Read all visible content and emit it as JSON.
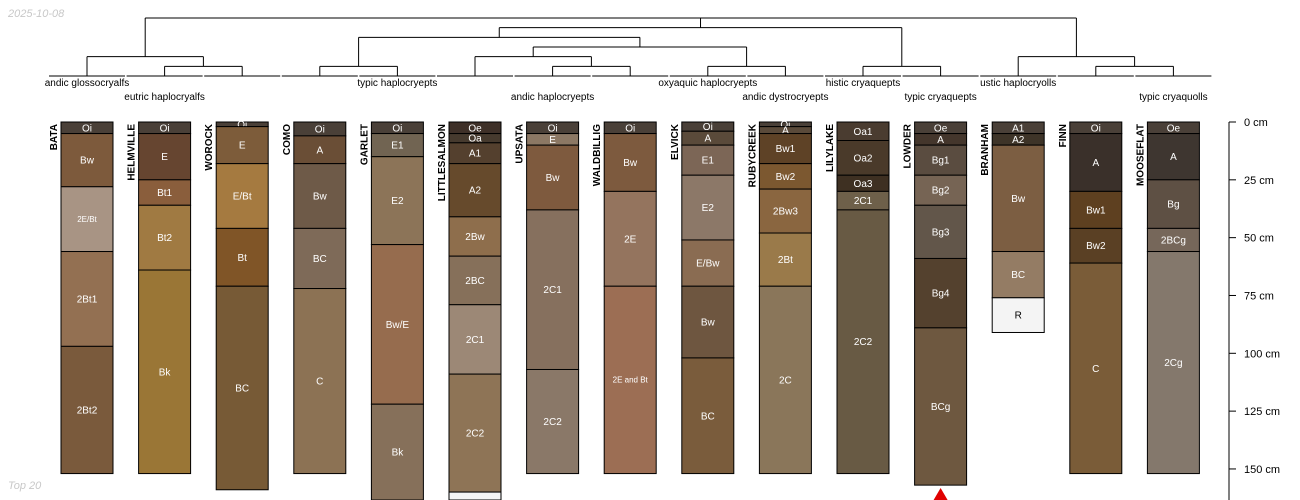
{
  "stamp": "2025-10-08",
  "footer": "Top 20",
  "chart_data": {
    "type": "soil-profile-sketch",
    "depth_axis": {
      "min": 0,
      "max": 160,
      "unit": "cm",
      "ticks": [
        "0 cm",
        "25 cm",
        "50 cm",
        "75 cm",
        "100 cm",
        "125 cm",
        "150 cm"
      ],
      "tick_values": [
        0,
        25,
        50,
        75,
        100,
        125,
        150
      ]
    },
    "profiles": [
      {
        "name": "BATA",
        "taxon": "andic glossocryalfs",
        "horizons": [
          {
            "name": "Oi",
            "top": 0,
            "bottom": 5,
            "color": "#4a4038"
          },
          {
            "name": "Bw",
            "top": 5,
            "bottom": 28,
            "color": "#7d5a3c"
          },
          {
            "name": "2E/Bt",
            "top": 28,
            "bottom": 56,
            "color": "#a89484"
          },
          {
            "name": "2Bt1",
            "top": 56,
            "bottom": 97,
            "color": "#937052"
          },
          {
            "name": "2Bt2",
            "top": 97,
            "bottom": 152,
            "color": "#7a5a3c"
          }
        ]
      },
      {
        "name": "HELMVILLE",
        "taxon": "eutric haplocryalfs",
        "horizons": [
          {
            "name": "Oi",
            "top": 0,
            "bottom": 5,
            "color": "#4a4038"
          },
          {
            "name": "E",
            "top": 5,
            "bottom": 25,
            "color": "#664530"
          },
          {
            "name": "Bt1",
            "top": 25,
            "bottom": 36,
            "color": "#8a5e3c"
          },
          {
            "name": "Bt2",
            "top": 36,
            "bottom": 64,
            "color": "#a07a42"
          },
          {
            "name": "Bk",
            "top": 64,
            "bottom": 152,
            "color": "#9a7636"
          }
        ]
      },
      {
        "name": "WOROCK",
        "taxon": "",
        "horizons": [
          {
            "name": "Oi",
            "top": 0,
            "bottom": 2,
            "color": "#4a4038"
          },
          {
            "name": "E",
            "top": 2,
            "bottom": 18,
            "color": "#7d5c3a"
          },
          {
            "name": "E/Bt",
            "top": 18,
            "bottom": 46,
            "color": "#a57a40"
          },
          {
            "name": "Bt",
            "top": 46,
            "bottom": 71,
            "color": "#805527"
          },
          {
            "name": "BC",
            "top": 71,
            "bottom": 159,
            "color": "#775a36"
          }
        ]
      },
      {
        "name": "COMO",
        "taxon": "",
        "horizons": [
          {
            "name": "Oi",
            "top": 0,
            "bottom": 6,
            "color": "#4a4038"
          },
          {
            "name": "A",
            "top": 6,
            "bottom": 18,
            "color": "#6a4e36"
          },
          {
            "name": "Bw",
            "top": 18,
            "bottom": 46,
            "color": "#6e5a48"
          },
          {
            "name": "BC",
            "top": 46,
            "bottom": 72,
            "color": "#7e6a58"
          },
          {
            "name": "C",
            "top": 72,
            "bottom": 152,
            "color": "#8c7254"
          }
        ]
      },
      {
        "name": "GARLET",
        "taxon": "typic haplocryepts",
        "horizons": [
          {
            "name": "Oi",
            "top": 0,
            "bottom": 5,
            "color": "#4a4038"
          },
          {
            "name": "E1",
            "top": 5,
            "bottom": 15,
            "color": "#716452"
          },
          {
            "name": "E2",
            "top": 15,
            "bottom": 53,
            "color": "#8c7458"
          },
          {
            "name": "Bw/E",
            "top": 53,
            "bottom": 122,
            "color": "#966c4e"
          },
          {
            "name": "Bk",
            "top": 122,
            "bottom": 165,
            "color": "#86705a"
          }
        ]
      },
      {
        "name": "LITTLESALMON",
        "taxon": "",
        "horizons": [
          {
            "name": "Oe",
            "top": 0,
            "bottom": 5,
            "color": "#3e3028"
          },
          {
            "name": "Oa",
            "top": 5,
            "bottom": 9,
            "color": "#463a2e"
          },
          {
            "name": "A1",
            "top": 9,
            "bottom": 18,
            "color": "#54402e"
          },
          {
            "name": "A2",
            "top": 18,
            "bottom": 41,
            "color": "#664a2c"
          },
          {
            "name": "2Bw",
            "top": 41,
            "bottom": 58,
            "color": "#8e6e4c"
          },
          {
            "name": "2BC",
            "top": 58,
            "bottom": 79,
            "color": "#86705a"
          },
          {
            "name": "2C1",
            "top": 79,
            "bottom": 109,
            "color": "#9c8876"
          },
          {
            "name": "2C2",
            "top": 109,
            "bottom": 160,
            "color": "#8e7456"
          },
          {
            "name": "",
            "top": 160,
            "bottom": 165,
            "color": "#f4f4f4"
          }
        ]
      },
      {
        "name": "UPSATA",
        "taxon": "andic haplocryepts",
        "horizons": [
          {
            "name": "Oi",
            "top": 0,
            "bottom": 5,
            "color": "#4a4038"
          },
          {
            "name": "E",
            "top": 5,
            "bottom": 10,
            "color": "#8c7864"
          },
          {
            "name": "Bw",
            "top": 10,
            "bottom": 38,
            "color": "#7e5a3e"
          },
          {
            "name": "2C1",
            "top": 38,
            "bottom": 107,
            "color": "#86705e"
          },
          {
            "name": "2C2",
            "top": 107,
            "bottom": 152,
            "color": "#8a7868"
          }
        ]
      },
      {
        "name": "WALDBILLIG",
        "taxon": "",
        "horizons": [
          {
            "name": "Oi",
            "top": 0,
            "bottom": 5,
            "color": "#4a4038"
          },
          {
            "name": "Bw",
            "top": 5,
            "bottom": 30,
            "color": "#7d5a3e"
          },
          {
            "name": "2E",
            "top": 30,
            "bottom": 71,
            "color": "#94745e"
          },
          {
            "name": "2E and Bt",
            "top": 71,
            "bottom": 152,
            "color": "#9c6e54"
          }
        ]
      },
      {
        "name": "ELVICK",
        "taxon": "oxyaquic haplocryepts",
        "horizons": [
          {
            "name": "Oi",
            "top": 0,
            "bottom": 4,
            "color": "#4a4038"
          },
          {
            "name": "A",
            "top": 4,
            "bottom": 10,
            "color": "#5a4a3a"
          },
          {
            "name": "E1",
            "top": 10,
            "bottom": 23,
            "color": "#7c6656"
          },
          {
            "name": "E2",
            "top": 23,
            "bottom": 51,
            "color": "#8c7868"
          },
          {
            "name": "E/Bw",
            "top": 51,
            "bottom": 71,
            "color": "#8a6c52"
          },
          {
            "name": "Bw",
            "top": 71,
            "bottom": 102,
            "color": "#6e5640"
          },
          {
            "name": "BC",
            "top": 102,
            "bottom": 152,
            "color": "#7a5c3c"
          }
        ]
      },
      {
        "name": "RUBYCREEK",
        "taxon": "andic dystrocryepts",
        "horizons": [
          {
            "name": "Oi",
            "top": 0,
            "bottom": 2,
            "color": "#4a4038"
          },
          {
            "name": "A",
            "top": 2,
            "bottom": 5,
            "color": "#5a4a3a"
          },
          {
            "name": "Bw1",
            "top": 5,
            "bottom": 18,
            "color": "#5e4226"
          },
          {
            "name": "Bw2",
            "top": 18,
            "bottom": 29,
            "color": "#7c5830"
          },
          {
            "name": "2Bw3",
            "top": 29,
            "bottom": 48,
            "color": "#8a6640"
          },
          {
            "name": "2Bt",
            "top": 48,
            "bottom": 71,
            "color": "#9a7a4a"
          },
          {
            "name": "2C",
            "top": 71,
            "bottom": 152,
            "color": "#8a765a"
          }
        ]
      },
      {
        "name": "LILYLAKE",
        "taxon": "histic cryaquepts",
        "horizons": [
          {
            "name": "Oa1",
            "top": 0,
            "bottom": 8,
            "color": "#4a3c30"
          },
          {
            "name": "Oa2",
            "top": 8,
            "bottom": 23,
            "color": "#4a3a2a"
          },
          {
            "name": "Oa3",
            "top": 23,
            "bottom": 30,
            "color": "#3e3022"
          },
          {
            "name": "2C1",
            "top": 30,
            "bottom": 38,
            "color": "#6e604a"
          },
          {
            "name": "2C2",
            "top": 38,
            "bottom": 152,
            "color": "#685a44"
          }
        ]
      },
      {
        "name": "LOWDER",
        "taxon": "typic cryaquepts",
        "horizons": [
          {
            "name": "Oe",
            "top": 0,
            "bottom": 5,
            "color": "#4a4038"
          },
          {
            "name": "A",
            "top": 5,
            "bottom": 10,
            "color": "#44362c"
          },
          {
            "name": "Bg1",
            "top": 10,
            "bottom": 23,
            "color": "#5a4c40"
          },
          {
            "name": "Bg2",
            "top": 23,
            "bottom": 36,
            "color": "#766454"
          },
          {
            "name": "Bg3",
            "top": 36,
            "bottom": 59,
            "color": "#62564a"
          },
          {
            "name": "Bg4",
            "top": 59,
            "bottom": 89,
            "color": "#54412e"
          },
          {
            "name": "BCg",
            "top": 89,
            "bottom": 157,
            "color": "#6e5840"
          }
        ]
      },
      {
        "name": "BRANHAM",
        "taxon": "ustic haplocryolls",
        "horizons": [
          {
            "name": "A1",
            "top": 0,
            "bottom": 5,
            "color": "#4a4038"
          },
          {
            "name": "A2",
            "top": 5,
            "bottom": 10,
            "color": "#3e3428"
          },
          {
            "name": "Bw",
            "top": 10,
            "bottom": 56,
            "color": "#7c5e42"
          },
          {
            "name": "BC",
            "top": 56,
            "bottom": 76,
            "color": "#947c64"
          },
          {
            "name": "R",
            "top": 76,
            "bottom": 91,
            "color": "#f4f4f4"
          }
        ]
      },
      {
        "name": "FINN",
        "taxon": "",
        "horizons": [
          {
            "name": "Oi",
            "top": 0,
            "bottom": 5,
            "color": "#4a4038"
          },
          {
            "name": "A",
            "top": 5,
            "bottom": 30,
            "color": "#3a302a"
          },
          {
            "name": "Bw1",
            "top": 30,
            "bottom": 46,
            "color": "#5e4020"
          },
          {
            "name": "Bw2",
            "top": 46,
            "bottom": 61,
            "color": "#5a4024"
          },
          {
            "name": "C",
            "top": 61,
            "bottom": 152,
            "color": "#7a5c38"
          }
        ]
      },
      {
        "name": "MOOSEFLAT",
        "taxon": "typic cryaquolls",
        "horizons": [
          {
            "name": "Oe",
            "top": 0,
            "bottom": 5,
            "color": "#4a4038"
          },
          {
            "name": "A",
            "top": 5,
            "bottom": 25,
            "color": "#3e3630"
          },
          {
            "name": "Bg",
            "top": 25,
            "bottom": 46,
            "color": "#5e5044"
          },
          {
            "name": "2BCg",
            "top": 46,
            "bottom": 56,
            "color": "#76675a"
          },
          {
            "name": "2Cg",
            "top": 56,
            "bottom": 152,
            "color": "#84786c"
          }
        ]
      }
    ],
    "tree": {
      "children": [
        {
          "children": [
            {
              "leaf": 0
            },
            {
              "children": [
                {
                  "leaf": 1
                },
                {
                  "leaf": 2
                }
              ]
            }
          ]
        },
        {
          "children": [
            {
              "children": [
                {
                  "children": [
                    {
                      "leaf": 3
                    },
                    {
                      "leaf": 4
                    }
                  ]
                },
                {
                  "children": [
                    {
                      "children": [
                        {
                          "leaf": 5
                        },
                        {
                          "children": [
                            {
                              "leaf": 6
                            },
                            {
                              "leaf": 7
                            }
                          ]
                        }
                      ]
                    },
                    {
                      "children": [
                        {
                          "leaf": 8
                        },
                        {
                          "leaf": 9
                        }
                      ]
                    }
                  ]
                }
              ]
            },
            {
              "children": [
                {
                  "leaf": 10
                },
                {
                  "leaf": 11
                }
              ]
            }
          ]
        },
        {
          "children": [
            {
              "leaf": 12
            },
            {
              "children": [
                {
                  "leaf": 13
                },
                {
                  "leaf": 14
                }
              ]
            }
          ]
        }
      ]
    }
  }
}
